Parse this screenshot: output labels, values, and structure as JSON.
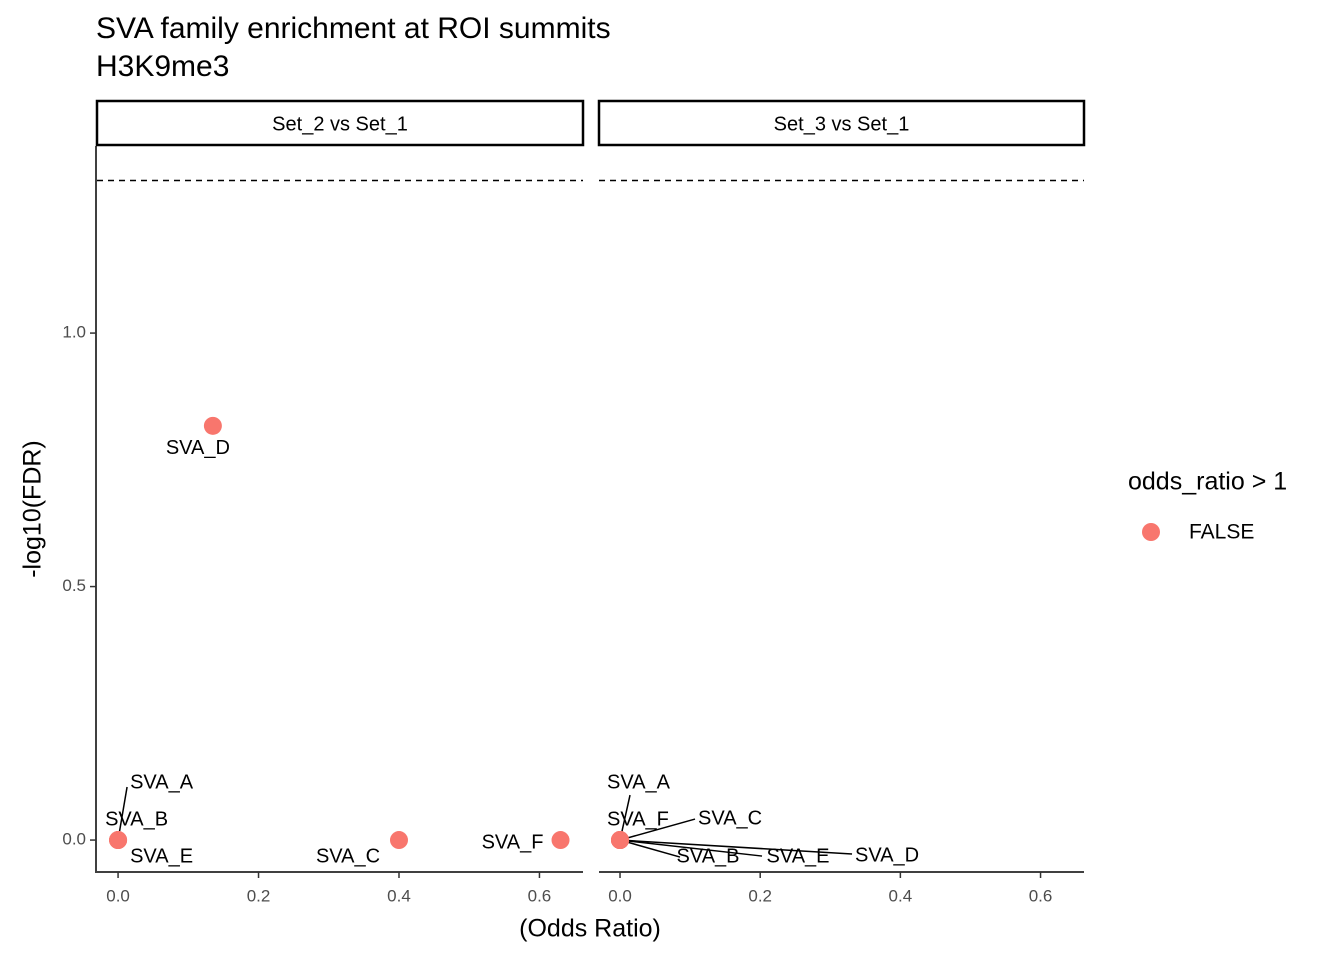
{
  "chart_data": {
    "type": "scatter",
    "title": "SVA family enrichment at ROI summits",
    "subtitle": "H3K9me3",
    "x_label": "(Odds Ratio)",
    "y_label": "-log10(FDR)",
    "legend_title": "odds_ratio > 1",
    "series": [
      {
        "name": "FALSE",
        "color": "#f8766d"
      }
    ],
    "xlim": [
      -0.03,
      0.662
    ],
    "ylim": [
      -0.063,
      1.369
    ],
    "xticks": [
      {
        "value": 0,
        "label": "0.0"
      },
      0.2,
      0.4,
      0.6
    ],
    "yticks": [
      {
        "value": 0,
        "label": "0.0"
      },
      0.5,
      {
        "value": 1,
        "label": "1.0"
      }
    ],
    "hline": 1.301,
    "facets": [
      {
        "title": "Set_2 vs Set_1",
        "labels": [
          "SVA_A",
          "SVA_B",
          "SVA_C",
          "SVA_D",
          "SVA_E",
          "SVA_F"
        ],
        "x": [
          0,
          0,
          0.4,
          0.135,
          0,
          0.63
        ],
        "y": [
          0,
          0,
          0,
          0.817,
          0,
          0
        ]
      },
      {
        "title": "Set_3 vs Set_1",
        "labels": [
          "SVA_A",
          "SVA_B",
          "SVA_C",
          "SVA_D",
          "SVA_E",
          "SVA_F"
        ],
        "x": [
          0,
          0,
          0,
          0,
          0,
          0
        ],
        "y": [
          0,
          0,
          0,
          0,
          0,
          0
        ]
      }
    ]
  }
}
